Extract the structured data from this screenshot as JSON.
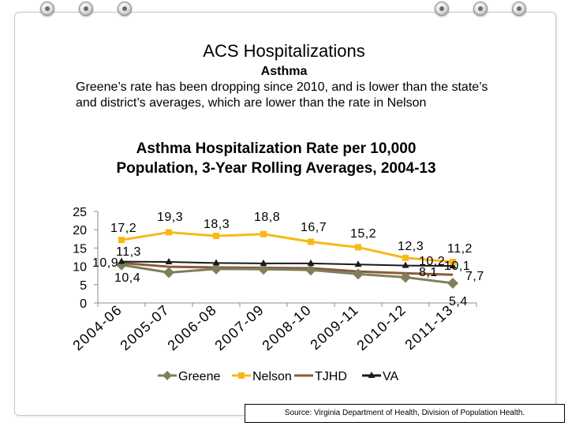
{
  "slide": {
    "title": "ACS Hospitalizations",
    "subtitle": "Asthma",
    "body": "Greene’s rate has been dropping since 2010, and is lower than the state’s and district’s averages, which are lower than the rate in Nelson",
    "source": "Source: Virginia Department of Health, Division of Population Health."
  },
  "chart_data": {
    "type": "line",
    "title": "Asthma Hospitalization Rate per 10,000 Population, 3-Year Rolling Averages, 2004-13",
    "categories": [
      "2004-06",
      "2005-07",
      "2006-08",
      "2007-09",
      "2008-10",
      "2009-11",
      "2010-12",
      "2011-13"
    ],
    "ylim": [
      0,
      25
    ],
    "yticks": [
      "0",
      "5",
      "10",
      "15",
      "20",
      "25"
    ],
    "legend_position": "bottom",
    "series": [
      {
        "name": "Greene",
        "color": "#7f7f5a",
        "marker": "diamond",
        "values": [
          10.4,
          8.3,
          9.3,
          9.2,
          9.0,
          7.9,
          7.0,
          5.4
        ]
      },
      {
        "name": "Nelson",
        "color": "#f9b817",
        "marker": "square",
        "values": [
          17.2,
          19.3,
          18.3,
          18.8,
          16.7,
          15.2,
          12.3,
          11.2
        ]
      },
      {
        "name": "TJHD",
        "color": "#8b5a3c",
        "marker": "none",
        "values": [
          10.9,
          9.9,
          9.7,
          9.6,
          9.5,
          8.6,
          8.1,
          7.7
        ]
      },
      {
        "name": "VA",
        "color": "#1a1a1a",
        "marker": "triangle",
        "values": [
          11.3,
          11.2,
          10.9,
          10.8,
          10.8,
          10.5,
          10.2,
          10.1
        ]
      }
    ],
    "data_labels": [
      {
        "text": "17,2"
      },
      {
        "text": "19,3"
      },
      {
        "text": "18,3"
      },
      {
        "text": "18,8"
      },
      {
        "text": "16,7"
      },
      {
        "text": "15,2"
      },
      {
        "text": "12,3"
      },
      {
        "text": "11,2"
      },
      {
        "text": "11,3"
      },
      {
        "text": "10,9"
      },
      {
        "text": "10,4"
      },
      {
        "text": "10,2"
      },
      {
        "text": "10,1"
      },
      {
        "text": "8,1"
      },
      {
        "text": "7,7"
      },
      {
        "text": "5,4"
      }
    ]
  }
}
